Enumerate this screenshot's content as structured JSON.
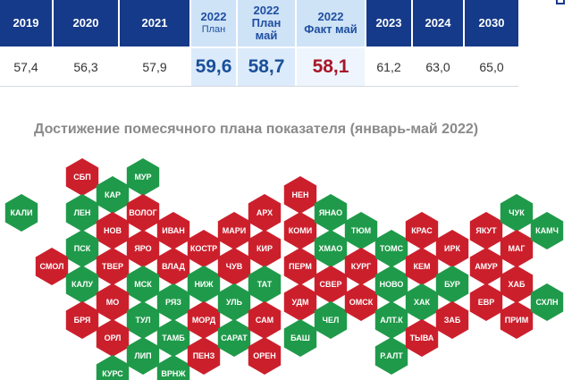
{
  "table": {
    "headers": [
      {
        "top": "2019",
        "sub": "",
        "style": "dark"
      },
      {
        "top": "2020",
        "sub": "",
        "style": "dark"
      },
      {
        "top": "2021",
        "sub": "",
        "style": "dark"
      },
      {
        "top": "2022",
        "sub": "План",
        "style": "light"
      },
      {
        "top": "2022",
        "sub": "План май",
        "style": "light"
      },
      {
        "top": "2022",
        "sub": "Факт май",
        "style": "light"
      },
      {
        "top": "2023",
        "sub": "",
        "style": "dark"
      },
      {
        "top": "2024",
        "sub": "",
        "style": "dark"
      },
      {
        "top": "2030",
        "sub": "",
        "style": "dark"
      }
    ],
    "values": [
      "57,4",
      "56,3",
      "57,9",
      "59,6",
      "58,7",
      "58,1",
      "61,2",
      "63,0",
      "65,0"
    ]
  },
  "title": "Достижение помесячного плана показателя (январь-май 2022)",
  "colors": {
    "green": "#1f9a4a",
    "red": "#cc1f2c",
    "header": "#163a8a"
  },
  "regions": [
    {
      "label": "КАЛИ",
      "status": "green"
    },
    {
      "label": "СБП",
      "status": "red"
    },
    {
      "label": "МУР",
      "status": "green"
    },
    {
      "label": "КАР",
      "status": "green"
    },
    {
      "label": "ЛЕН",
      "status": "green"
    },
    {
      "label": "ВОЛОГ",
      "status": "red"
    },
    {
      "label": "НОВ",
      "status": "red"
    },
    {
      "label": "ИВАН",
      "status": "red"
    },
    {
      "label": "ПСК",
      "status": "green"
    },
    {
      "label": "ЯРО",
      "status": "red"
    },
    {
      "label": "СМОЛ",
      "status": "red"
    },
    {
      "label": "ТВЕР",
      "status": "red"
    },
    {
      "label": "ВЛАД",
      "status": "red"
    },
    {
      "label": "КАЛУ",
      "status": "green"
    },
    {
      "label": "МСК",
      "status": "green"
    },
    {
      "label": "МО",
      "status": "red"
    },
    {
      "label": "РЯЗ",
      "status": "green"
    },
    {
      "label": "БРЯ",
      "status": "red"
    },
    {
      "label": "ТУЛ",
      "status": "green"
    },
    {
      "label": "ОРЛ",
      "status": "red"
    },
    {
      "label": "ТАМБ",
      "status": "green"
    },
    {
      "label": "ЛИП",
      "status": "green"
    },
    {
      "label": "КУРС",
      "status": "green"
    },
    {
      "label": "ВРНЖ",
      "status": "green"
    },
    {
      "label": "КОСТР",
      "status": "red"
    },
    {
      "label": "НИЖ",
      "status": "green"
    },
    {
      "label": "МОРД",
      "status": "red"
    },
    {
      "label": "ПЕНЗ",
      "status": "red"
    },
    {
      "label": "МАРИ",
      "status": "red"
    },
    {
      "label": "ЧУВ",
      "status": "red"
    },
    {
      "label": "УЛЬ",
      "status": "green"
    },
    {
      "label": "САРАТ",
      "status": "green"
    },
    {
      "label": "АРХ",
      "status": "red"
    },
    {
      "label": "КИР",
      "status": "red"
    },
    {
      "label": "ТАТ",
      "status": "green"
    },
    {
      "label": "САМ",
      "status": "red"
    },
    {
      "label": "ОРЕН",
      "status": "red"
    },
    {
      "label": "НЕН",
      "status": "red"
    },
    {
      "label": "КОМИ",
      "status": "red"
    },
    {
      "label": "ПЕРМ",
      "status": "red"
    },
    {
      "label": "УДМ",
      "status": "red"
    },
    {
      "label": "БАШ",
      "status": "green"
    },
    {
      "label": "ЯНАО",
      "status": "green"
    },
    {
      "label": "ХМАО",
      "status": "green"
    },
    {
      "label": "СВЕР",
      "status": "red"
    },
    {
      "label": "ЧЕЛ",
      "status": "green"
    },
    {
      "label": "ТЮМ",
      "status": "green"
    },
    {
      "label": "КУРГ",
      "status": "red"
    },
    {
      "label": "ОМСК",
      "status": "red"
    },
    {
      "label": "ТОМС",
      "status": "green"
    },
    {
      "label": "НОВО",
      "status": "green"
    },
    {
      "label": "АЛТ.К",
      "status": "green"
    },
    {
      "label": "Р.АЛТ",
      "status": "green"
    },
    {
      "label": "КРАС",
      "status": "red"
    },
    {
      "label": "КЕМ",
      "status": "red"
    },
    {
      "label": "ХАК",
      "status": "green"
    },
    {
      "label": "ТЫВА",
      "status": "red"
    },
    {
      "label": "ИРК",
      "status": "red"
    },
    {
      "label": "БУР",
      "status": "green"
    },
    {
      "label": "ЗАБ",
      "status": "red"
    },
    {
      "label": "ЯКУТ",
      "status": "red"
    },
    {
      "label": "АМУР",
      "status": "red"
    },
    {
      "label": "ЕВР",
      "status": "red"
    },
    {
      "label": "ЧУК",
      "status": "green"
    },
    {
      "label": "МАГ",
      "status": "red"
    },
    {
      "label": "ХАБ",
      "status": "red"
    },
    {
      "label": "ПРИМ",
      "status": "red"
    },
    {
      "label": "КАМЧ",
      "status": "green"
    },
    {
      "label": "СХЛН",
      "status": "green"
    }
  ]
}
